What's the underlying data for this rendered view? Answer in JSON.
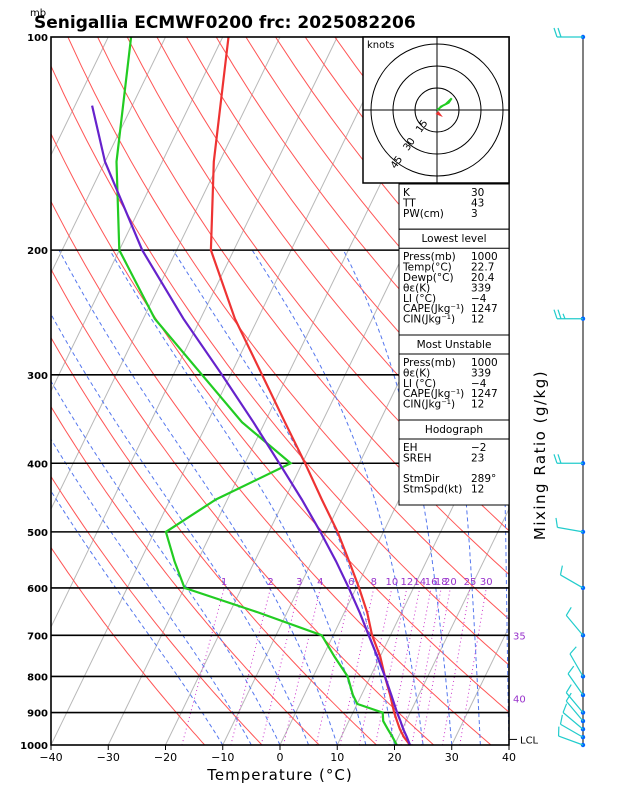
{
  "header": {
    "pressure_unit": "mb",
    "title": "Senigallia ECMWF0200  frc: 2025082206"
  },
  "chart_data": {
    "type": "skew-t",
    "xlabel": "Temperature (°C)",
    "right_label": "Mixing Ratio (g/kg)",
    "x_ticks": [
      -40,
      -30,
      -20,
      -10,
      0,
      10,
      20,
      30,
      40
    ],
    "y_ticks": [
      100,
      200,
      300,
      400,
      500,
      600,
      700,
      800,
      900,
      1000
    ],
    "ylim": [
      100,
      1000
    ],
    "xlim_at_1000": [
      -40,
      40
    ],
    "skew_deg_per_decade": 60,
    "isotherms_every": 10,
    "dry_adiabat_thetas_K": [
      260,
      270,
      280,
      290,
      300,
      310,
      320,
      330,
      340,
      350,
      360,
      370,
      380,
      390,
      400,
      410,
      420,
      430,
      440,
      450,
      460
    ],
    "moist_adiabat_thetaw_C": [
      -10,
      -5,
      0,
      5,
      10,
      15,
      20,
      25,
      30,
      35,
      40
    ],
    "mixing_ratio_lines": [
      1,
      2,
      3,
      4,
      6,
      8,
      10,
      12,
      14,
      16,
      18,
      20,
      25,
      30
    ],
    "mixing_ratio_labels": [
      "1",
      "2",
      "3",
      "4",
      "6",
      "8",
      "10",
      "12",
      "14",
      "16",
      "18",
      "20",
      "25",
      "30"
    ],
    "theta_e_labels": [
      {
        "text": "35",
        "p": 700
      },
      {
        "text": "40",
        "p": 860
      }
    ],
    "lcl": {
      "label": "LCL",
      "p": 982
    },
    "series": [
      {
        "color": "#ee3333",
        "points": [
          [
            1000,
            22.7
          ],
          [
            975,
            21.0
          ],
          [
            950,
            19.6
          ],
          [
            925,
            18.4
          ],
          [
            900,
            17.2
          ],
          [
            850,
            15.0
          ],
          [
            800,
            12.5
          ],
          [
            750,
            10.0
          ],
          [
            700,
            6.8
          ],
          [
            650,
            4.0
          ],
          [
            600,
            0.5
          ],
          [
            550,
            -3.5
          ],
          [
            500,
            -8.0
          ],
          [
            450,
            -13.5
          ],
          [
            400,
            -19.5
          ],
          [
            350,
            -26.5
          ],
          [
            300,
            -34.5
          ],
          [
            250,
            -44.0
          ],
          [
            200,
            -54.0
          ],
          [
            150,
            -61.0
          ],
          [
            100,
            -69.0
          ]
        ]
      },
      {
        "color": "#22cc22",
        "points": [
          [
            1000,
            20.4
          ],
          [
            975,
            19.0
          ],
          [
            950,
            17.5
          ],
          [
            925,
            16.0
          ],
          [
            900,
            15.2
          ],
          [
            875,
            10.0
          ],
          [
            850,
            8.5
          ],
          [
            800,
            6.0
          ],
          [
            750,
            2.0
          ],
          [
            700,
            -2.0
          ],
          [
            650,
            -15.0
          ],
          [
            600,
            -30.0
          ],
          [
            550,
            -34.0
          ],
          [
            500,
            -38.0
          ],
          [
            450,
            -32.0
          ],
          [
            400,
            -22.0
          ],
          [
            350,
            -34.0
          ],
          [
            300,
            -45.0
          ],
          [
            250,
            -58.0
          ],
          [
            200,
            -70.0
          ],
          [
            150,
            -78.0
          ],
          [
            100,
            -86.0
          ]
        ]
      },
      {
        "color": "#6622cc",
        "points": [
          [
            1000,
            22.7
          ],
          [
            975,
            21.5
          ],
          [
            950,
            20.2
          ],
          [
            925,
            19.0
          ],
          [
            900,
            17.7
          ],
          [
            850,
            15.2
          ],
          [
            800,
            12.5
          ],
          [
            750,
            9.5
          ],
          [
            700,
            6.2
          ],
          [
            650,
            2.7
          ],
          [
            600,
            -1.3
          ],
          [
            550,
            -5.8
          ],
          [
            500,
            -11.0
          ],
          [
            450,
            -17.0
          ],
          [
            400,
            -24.0
          ],
          [
            350,
            -32.0
          ],
          [
            300,
            -41.5
          ],
          [
            250,
            -53.0
          ],
          [
            200,
            -66.0
          ],
          [
            150,
            -80.0
          ],
          [
            125,
            -87.0
          ]
        ]
      }
    ],
    "hodograph": {
      "unit_label": "knots",
      "ring_labels": [
        "15",
        "30",
        "45"
      ],
      "trace": [
        [
          0,
          0
        ],
        [
          4,
          3
        ],
        [
          8,
          5
        ],
        [
          10,
          8
        ],
        [
          6,
          4
        ],
        [
          2,
          2
        ]
      ],
      "storm_motion": [
        3,
        -4
      ],
      "colors": [
        "#ee3333",
        "#22cc22"
      ]
    },
    "wind_barbs": [
      {
        "p": 1000,
        "dir": 290,
        "spd": 10
      },
      {
        "p": 975,
        "dir": 300,
        "spd": 10
      },
      {
        "p": 950,
        "dir": 310,
        "spd": 10
      },
      {
        "p": 925,
        "dir": 320,
        "spd": 10
      },
      {
        "p": 900,
        "dir": 320,
        "spd": 10
      },
      {
        "p": 850,
        "dir": 325,
        "spd": 10
      },
      {
        "p": 800,
        "dir": 330,
        "spd": 10
      },
      {
        "p": 700,
        "dir": 320,
        "spd": 10
      },
      {
        "p": 600,
        "dir": 300,
        "spd": 10
      },
      {
        "p": 500,
        "dir": 280,
        "spd": 10
      },
      {
        "p": 400,
        "dir": 270,
        "spd": 20
      },
      {
        "p": 250,
        "dir": 270,
        "spd": 25
      },
      {
        "p": 100,
        "dir": 270,
        "spd": 20
      }
    ]
  },
  "indices": [
    {
      "rows": [
        [
          "K",
          "30"
        ],
        [
          "TT",
          "43"
        ],
        [
          "PW(cm)",
          "3"
        ]
      ]
    },
    {
      "heading": "Lowest level",
      "rows": [
        [
          "Press(mb)",
          "1000"
        ],
        [
          "Temp(°C)",
          "22.7"
        ],
        [
          "Dewp(°C)",
          "20.4"
        ],
        [
          "θε(K)",
          "339"
        ],
        [
          "LI (°C)",
          "−4"
        ],
        [
          "CAPE(Jkg⁻¹)",
          "1247"
        ],
        [
          "CIN(Jkg⁻¹)",
          "12"
        ]
      ]
    },
    {
      "heading": "Most Unstable",
      "rows": [
        [
          "Press(mb)",
          "1000"
        ],
        [
          "θε(K)",
          "339"
        ],
        [
          "LI (°C)",
          "−4"
        ],
        [
          "CAPE(Jkg⁻¹)",
          "1247"
        ],
        [
          "CIN(Jkg⁻¹)",
          "12"
        ]
      ]
    },
    {
      "heading": "Hodograph",
      "rows": [
        [
          "EH",
          "−2"
        ],
        [
          "SREH",
          "23"
        ],
        [
          "",
          ""
        ],
        [
          "StmDir",
          "289°"
        ],
        [
          "StmSpd(kt)",
          "12"
        ]
      ]
    }
  ]
}
